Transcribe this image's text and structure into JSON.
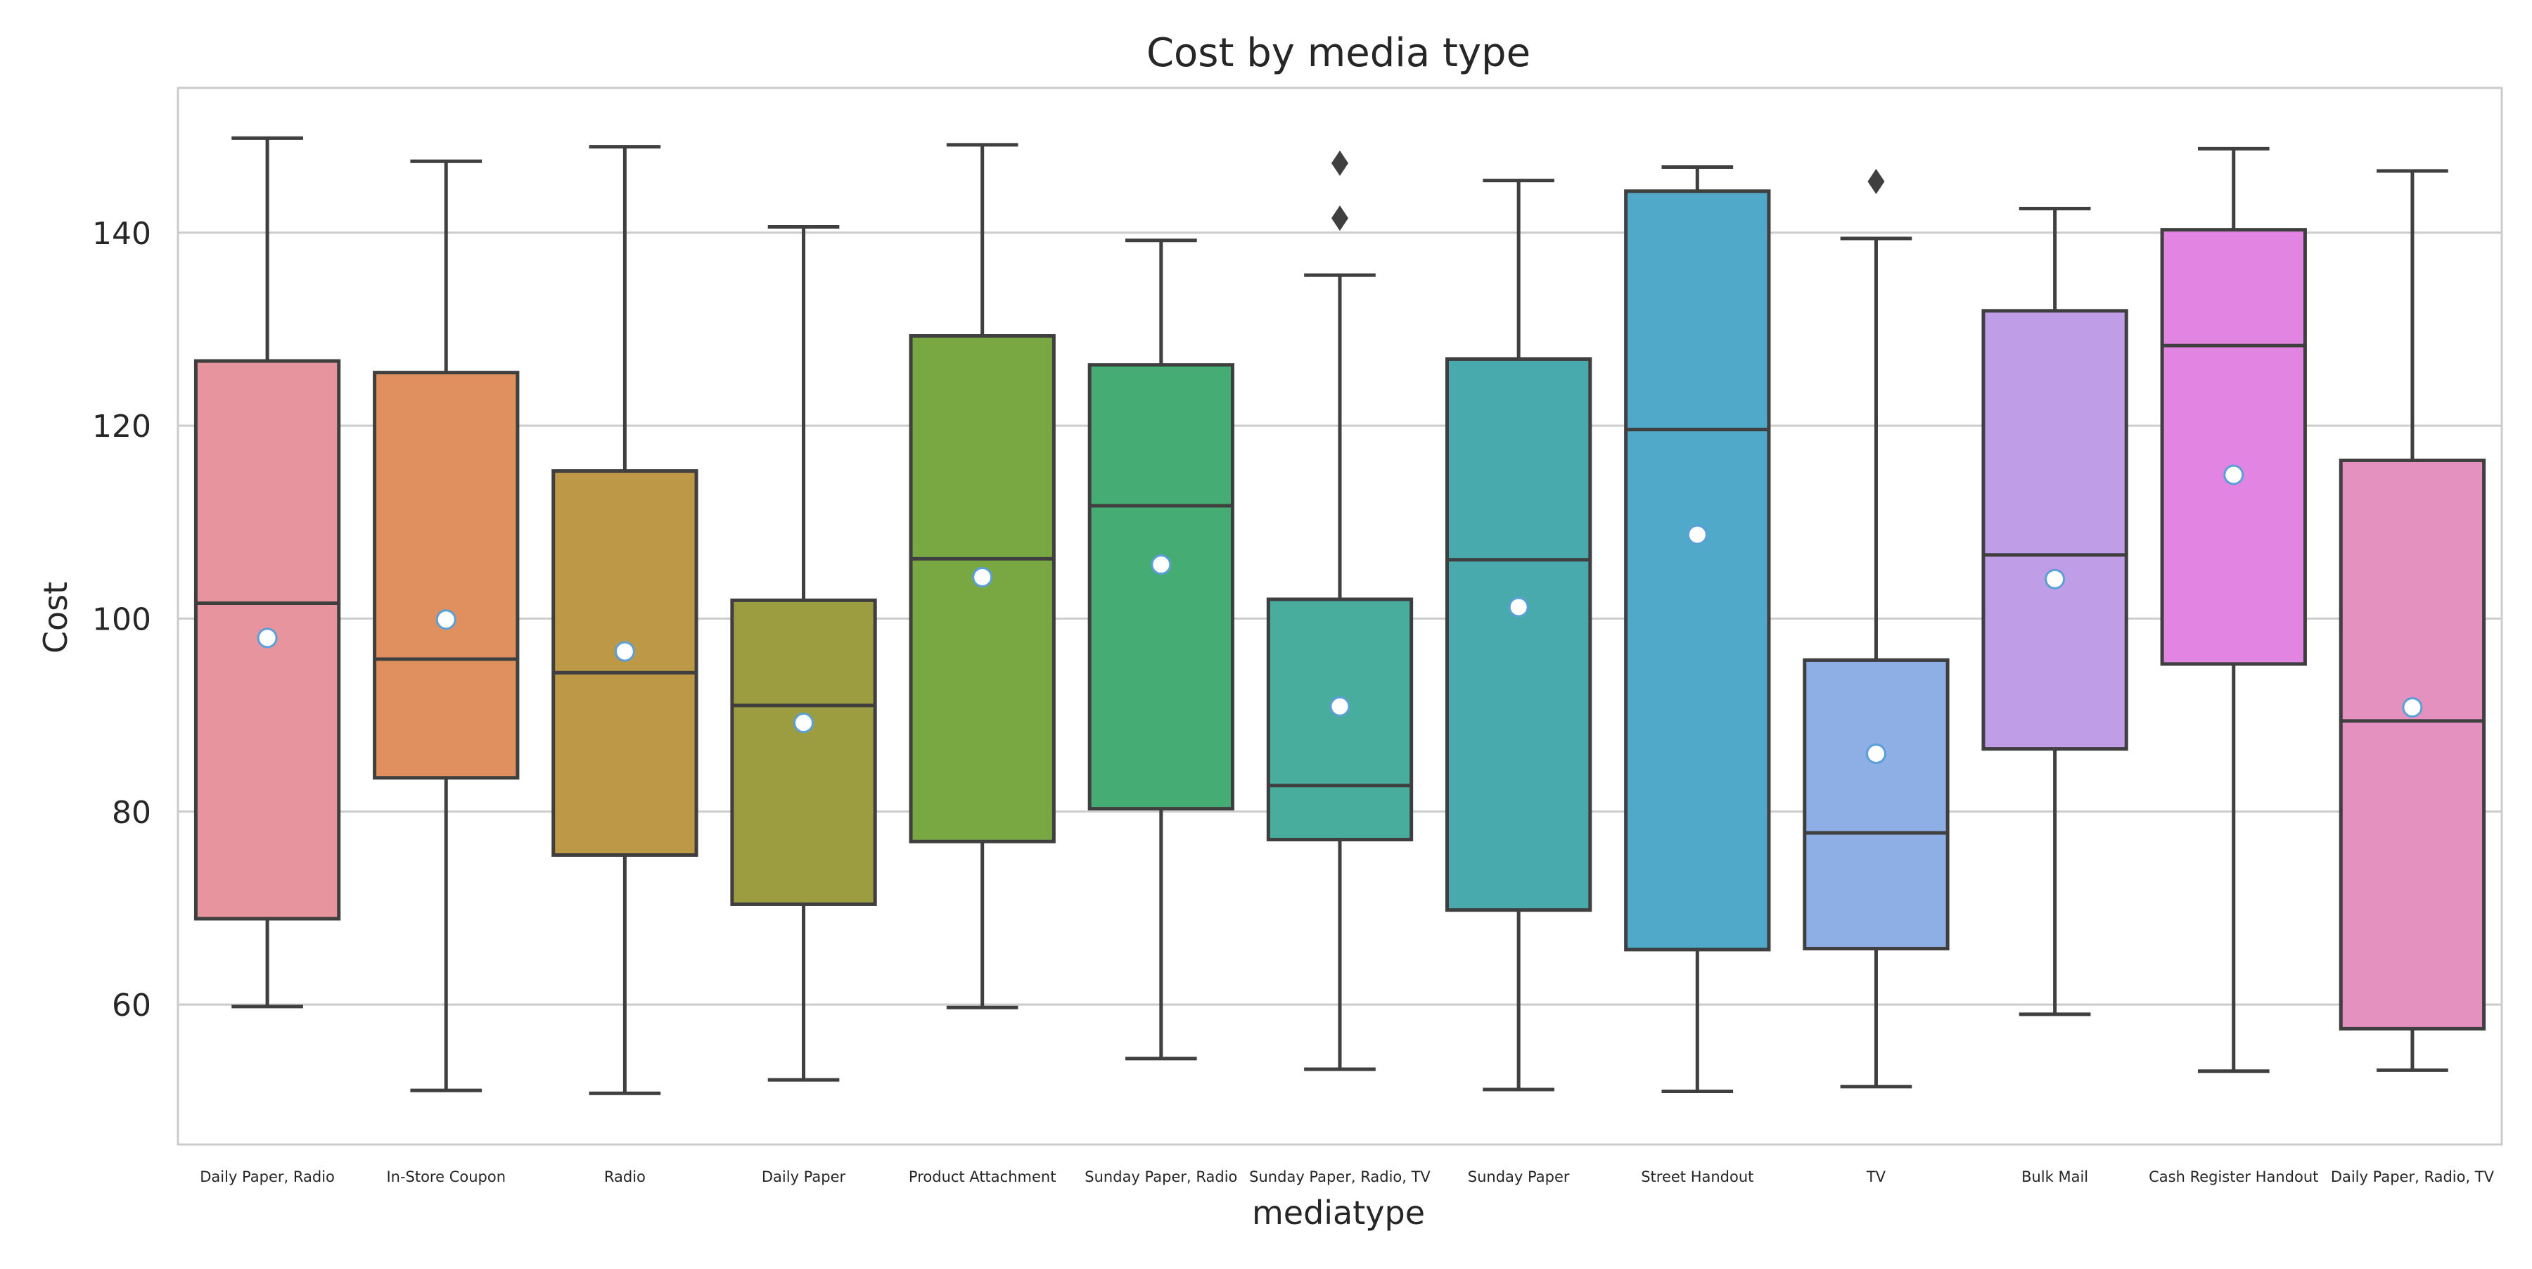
{
  "chart_data": {
    "type": "box",
    "title": "Cost by media type",
    "xlabel": "mediatype",
    "ylabel": "Cost",
    "ylim": [
      45.5,
      155
    ],
    "yticks": [
      60,
      80,
      100,
      120,
      140
    ],
    "grid": "horizontal",
    "categories": [
      "Daily Paper, Radio",
      "In-Store Coupon",
      "Radio",
      "Daily Paper",
      "Product Attachment",
      "Sunday Paper, Radio",
      "Sunday Paper, Radio, TV",
      "Sunday Paper",
      "Street Handout",
      "TV",
      "Bulk Mail",
      "Cash Register Handout",
      "Daily Paper, Radio, TV"
    ],
    "colors": [
      "#e8949f",
      "#e0905e",
      "#bd9847",
      "#9c9c40",
      "#79a843",
      "#45ad74",
      "#48ad9c",
      "#49aaad",
      "#50a9c8",
      "#8eaee6",
      "#bf9ee7",
      "#e285e2",
      "#e591bf"
    ],
    "series": [
      {
        "category": "Daily Paper, Radio",
        "whisker_low": 59.8,
        "q1": 68.9,
        "median": 101.6,
        "q3": 126.7,
        "whisker_high": 149.8,
        "mean": 98.0,
        "outliers": []
      },
      {
        "category": "In-Store Coupon",
        "whisker_low": 51.1,
        "q1": 83.5,
        "median": 95.8,
        "q3": 125.5,
        "whisker_high": 147.4,
        "mean": 99.9,
        "outliers": []
      },
      {
        "category": "Radio",
        "whisker_low": 50.8,
        "q1": 75.5,
        "median": 94.4,
        "q3": 115.3,
        "whisker_high": 148.9,
        "mean": 96.6,
        "outliers": []
      },
      {
        "category": "Daily Paper",
        "whisker_low": 52.2,
        "q1": 70.4,
        "median": 91.0,
        "q3": 101.9,
        "whisker_high": 140.6,
        "mean": 89.2,
        "outliers": []
      },
      {
        "category": "Product Attachment",
        "whisker_low": 59.7,
        "q1": 76.9,
        "median": 106.2,
        "q3": 129.3,
        "whisker_high": 149.1,
        "mean": 104.3,
        "outliers": []
      },
      {
        "category": "Sunday Paper, Radio",
        "whisker_low": 54.4,
        "q1": 80.3,
        "median": 111.7,
        "q3": 126.3,
        "whisker_high": 139.2,
        "mean": 105.6,
        "outliers": []
      },
      {
        "category": "Sunday Paper, Radio, TV",
        "whisker_low": 53.3,
        "q1": 77.1,
        "median": 82.7,
        "q3": 102.0,
        "whisker_high": 135.6,
        "mean": 90.9,
        "outliers": [
          141.5,
          147.2
        ]
      },
      {
        "category": "Sunday Paper",
        "whisker_low": 51.2,
        "q1": 69.8,
        "median": 106.1,
        "q3": 126.9,
        "whisker_high": 145.4,
        "mean": 101.2,
        "outliers": []
      },
      {
        "category": "Street Handout",
        "whisker_low": 51.0,
        "q1": 65.7,
        "median": 119.6,
        "q3": 144.3,
        "whisker_high": 146.8,
        "mean": 108.7,
        "outliers": []
      },
      {
        "category": "TV",
        "whisker_low": 51.5,
        "q1": 65.8,
        "median": 77.8,
        "q3": 95.7,
        "whisker_high": 139.4,
        "mean": 86.0,
        "outliers": [
          145.3
        ]
      },
      {
        "category": "Bulk Mail",
        "whisker_low": 59.0,
        "q1": 86.5,
        "median": 106.6,
        "q3": 131.9,
        "whisker_high": 142.5,
        "mean": 104.1,
        "outliers": []
      },
      {
        "category": "Cash Register Handout",
        "whisker_low": 53.1,
        "q1": 95.3,
        "median": 128.3,
        "q3": 140.3,
        "whisker_high": 148.7,
        "mean": 114.9,
        "outliers": []
      },
      {
        "category": "Daily Paper, Radio, TV",
        "whisker_low": 53.2,
        "q1": 57.5,
        "median": 89.4,
        "q3": 116.4,
        "whisker_high": 146.4,
        "mean": 90.8,
        "outliers": []
      }
    ]
  }
}
